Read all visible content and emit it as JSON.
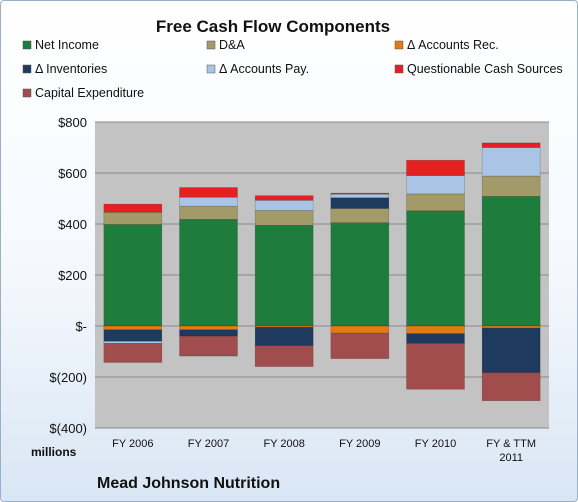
{
  "chart_data": {
    "type": "bar",
    "stacked": true,
    "title": "Free Cash Flow Components",
    "categories": [
      "FY 2006",
      "FY 2007",
      "FY 2008",
      "FY 2009",
      "FY 2010",
      "FY & TTM\n2011"
    ],
    "units": "millions",
    "company": "Mead Johnson Nutrition",
    "ylim": [
      -400,
      800
    ],
    "yticks": [
      800,
      600,
      400,
      200,
      0,
      -200,
      -400
    ],
    "ytick_labels": [
      "$800",
      "$600",
      "$400",
      "$200",
      "$-",
      "$(200)",
      "$(400)"
    ],
    "grid": true,
    "legend_position": "top",
    "series": [
      {
        "name": "Net Income",
        "color": "#1e7d3c",
        "values": [
          398,
          418,
          395,
          405,
          452,
          508
        ]
      },
      {
        "name": "D&A",
        "color": "#a39a6a",
        "values": [
          48,
          52,
          58,
          56,
          66,
          80
        ]
      },
      {
        "name": "Δ Accounts Rec.",
        "color": "#e07b16",
        "values": [
          -15,
          -15,
          -5,
          -28,
          -30,
          -8
        ]
      },
      {
        "name": "Δ Inventories",
        "color": "#1f3a5f",
        "values": [
          -45,
          -25,
          -72,
          42,
          -38,
          -175
        ]
      },
      {
        "name": "Δ Accounts Pay.",
        "color": "#a9c4e4",
        "values": [
          -8,
          35,
          40,
          14,
          72,
          112
        ]
      },
      {
        "name": "Questionable Cash Sources",
        "color": "#e42020",
        "values": [
          32,
          38,
          18,
          4,
          60,
          18
        ]
      },
      {
        "name": "Capital Expenditure",
        "color": "#a14d4d",
        "values": [
          -75,
          -78,
          -82,
          -100,
          -180,
          -110
        ]
      }
    ]
  }
}
